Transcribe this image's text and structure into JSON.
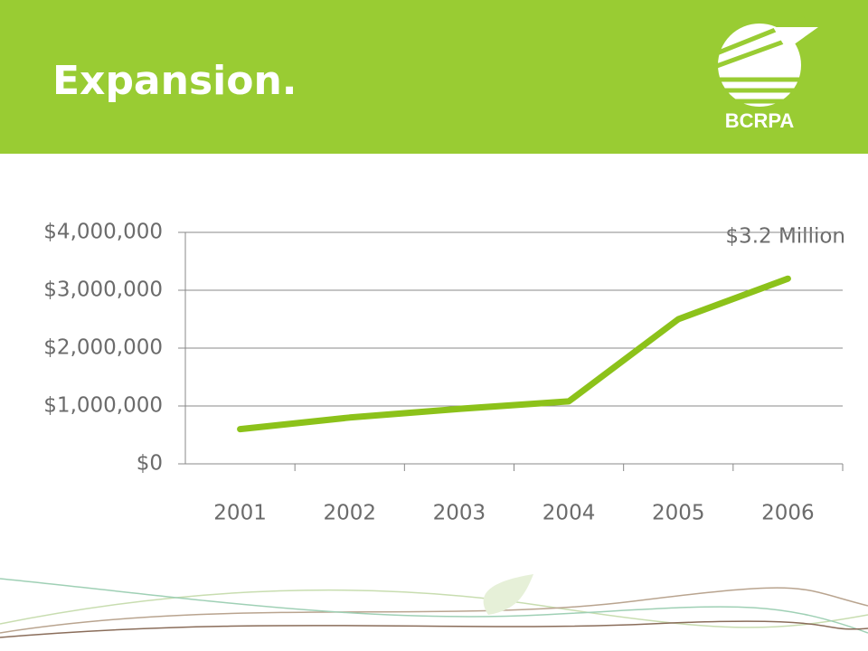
{
  "logo": "BCRPA",
  "chart_data": {
    "type": "line",
    "title": "Expansion.",
    "categories": [
      "2001",
      "2002",
      "2003",
      "2004",
      "2005",
      "2006"
    ],
    "values": [
      600000,
      800000,
      950000,
      1080000,
      2500000,
      3200000
    ],
    "color": "#8cc21a",
    "ylim": [
      0,
      4000000
    ],
    "yticks": [
      {
        "value": 0,
        "label": "$0"
      },
      {
        "value": 1000000,
        "label": "$1,000,000"
      },
      {
        "value": 2000000,
        "label": "$2,000,000"
      },
      {
        "value": 3000000,
        "label": "$3,000,000"
      },
      {
        "value": 4000000,
        "label": "$4,000,000"
      }
    ],
    "grid": true,
    "annotation": "$3.2 Million"
  }
}
